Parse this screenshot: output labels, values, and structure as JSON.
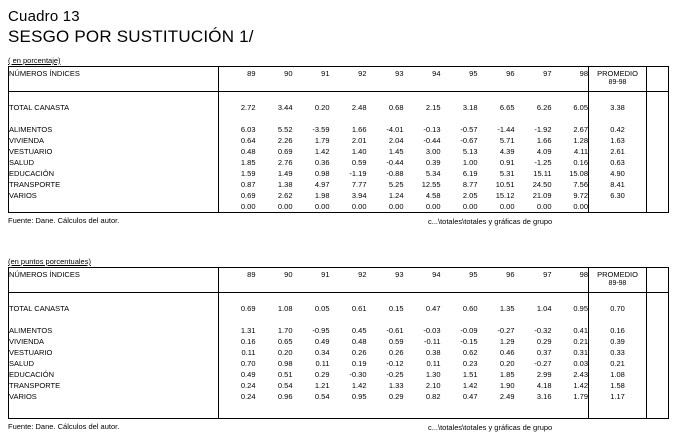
{
  "page": {
    "title": "Cuadro 13",
    "subtitle": "SESGO POR SUSTITUCIÓN 1/"
  },
  "tables": [
    {
      "unit_label": "( en porcentaje)",
      "header": {
        "row_label": "NÚMEROS ÍNDICES",
        "years": [
          "89",
          "90",
          "91",
          "92",
          "93",
          "94",
          "95",
          "96",
          "97",
          "98"
        ],
        "average_label": "PROMEDIO",
        "average_sublabel": "89-98"
      },
      "rows": [
        {
          "label": "TOTAL CANASTA",
          "values": [
            "2.72",
            "3.44",
            "0.20",
            "2.48",
            "0.68",
            "2.15",
            "3.18",
            "6.65",
            "6.26",
            "6.05"
          ],
          "average": "3.38",
          "gap_after": true
        },
        {
          "label": "ALIMENTOS",
          "values": [
            "6.03",
            "5.52",
            "-3.59",
            "1.66",
            "-4.01",
            "-0.13",
            "-0.57",
            "-1.44",
            "-1.92",
            "2.67"
          ],
          "average": "0.42"
        },
        {
          "label": "VIVIENDA",
          "values": [
            "0.64",
            "2.26",
            "1.79",
            "2.01",
            "2.04",
            "-0.44",
            "-0.67",
            "5.71",
            "1.66",
            "1.28"
          ],
          "average": "1.63"
        },
        {
          "label": "VESTUARIO",
          "values": [
            "0.48",
            "0.69",
            "1.42",
            "1.40",
            "1.45",
            "3.00",
            "5.13",
            "4.39",
            "4.09",
            "4.11"
          ],
          "average": "2.61"
        },
        {
          "label": "SALUD",
          "values": [
            "1.85",
            "2.76",
            "0.36",
            "0.59",
            "-0.44",
            "0.39",
            "1.00",
            "0.91",
            "-1.25",
            "0.16"
          ],
          "average": "0.63"
        },
        {
          "label": "EDUCACIÓN",
          "values": [
            "1.59",
            "1.49",
            "0.98",
            "-1.19",
            "-0.88",
            "5.34",
            "6.19",
            "5.31",
            "15.11",
            "15.08"
          ],
          "average": "4.90"
        },
        {
          "label": "TRANSPORTE",
          "values": [
            "0.87",
            "1.38",
            "4.97",
            "7.77",
            "5.25",
            "12.55",
            "8.77",
            "10.51",
            "24.50",
            "7.56"
          ],
          "average": "8.41"
        },
        {
          "label": "VARIOS",
          "values": [
            "0.69",
            "2.62",
            "1.98",
            "3.94",
            "1.24",
            "4.58",
            "2.05",
            "15.12",
            "21.09",
            "9.72"
          ],
          "average": "6.30"
        },
        {
          "label": "",
          "values": [
            "0.00",
            "0.00",
            "0.00",
            "0.00",
            "0.00",
            "0.00",
            "0.00",
            "0.00",
            "0.00",
            "0.00"
          ],
          "average": ""
        }
      ],
      "trailing_blank": false,
      "footer_left": "Fuente: Dane.  Cálculos del autor.",
      "footer_right": "c...\\totales\\totales y gráficas de grupo"
    },
    {
      "unit_label": "(en puntos porcentuales)",
      "header": {
        "row_label": "NÚMEROS ÍNDICES",
        "years": [
          "89",
          "90",
          "91",
          "92",
          "93",
          "94",
          "95",
          "96",
          "97",
          "98"
        ],
        "average_label": "PROMEDIO",
        "average_sublabel": "89-98"
      },
      "rows": [
        {
          "label": "TOTAL CANASTA",
          "values": [
            "0.69",
            "1.08",
            "0.05",
            "0.61",
            "0.15",
            "0.47",
            "0.60",
            "1.35",
            "1.04",
            "0.95"
          ],
          "average": "0.70",
          "gap_after": true
        },
        {
          "label": "ALIMENTOS",
          "values": [
            "1.31",
            "1.70",
            "-0.95",
            "0.45",
            "-0.61",
            "-0.03",
            "-0.09",
            "-0.27",
            "-0.32",
            "0.41"
          ],
          "average": "0.16"
        },
        {
          "label": "VIVIENDA",
          "values": [
            "0.16",
            "0.65",
            "0.49",
            "0.48",
            "0.59",
            "-0.11",
            "-0.15",
            "1.29",
            "0.29",
            "0.21"
          ],
          "average": "0.39"
        },
        {
          "label": "VESTUARIO",
          "values": [
            "0.11",
            "0.20",
            "0.34",
            "0.26",
            "0.26",
            "0.38",
            "0.62",
            "0.46",
            "0.37",
            "0.31"
          ],
          "average": "0.33"
        },
        {
          "label": "SALUD",
          "values": [
            "0.70",
            "0.98",
            "0.11",
            "0.19",
            "-0.12",
            "0.11",
            "0.23",
            "0.20",
            "-0.27",
            "0.03"
          ],
          "average": "0.21"
        },
        {
          "label": "EDUCACIÓN",
          "values": [
            "0.49",
            "0.51",
            "0.29",
            "-0.30",
            "-0.25",
            "1.30",
            "1.51",
            "1.85",
            "2.99",
            "2.43"
          ],
          "average": "1.08"
        },
        {
          "label": "TRANSPORTE",
          "values": [
            "0.24",
            "0.54",
            "1.21",
            "1.42",
            "1.33",
            "2.10",
            "1.42",
            "1.90",
            "4.18",
            "1.42"
          ],
          "average": "1.58"
        },
        {
          "label": "VARIOS",
          "values": [
            "0.24",
            "0.96",
            "0.54",
            "0.95",
            "0.29",
            "0.82",
            "0.47",
            "2.49",
            "3.16",
            "1.79"
          ],
          "average": "1.17"
        }
      ],
      "trailing_blank": true,
      "footer_left": "Fuente: Dane.  Cálculos del autor.",
      "footer_right": "c...\\totales\\totales y gráficas de grupo"
    }
  ]
}
